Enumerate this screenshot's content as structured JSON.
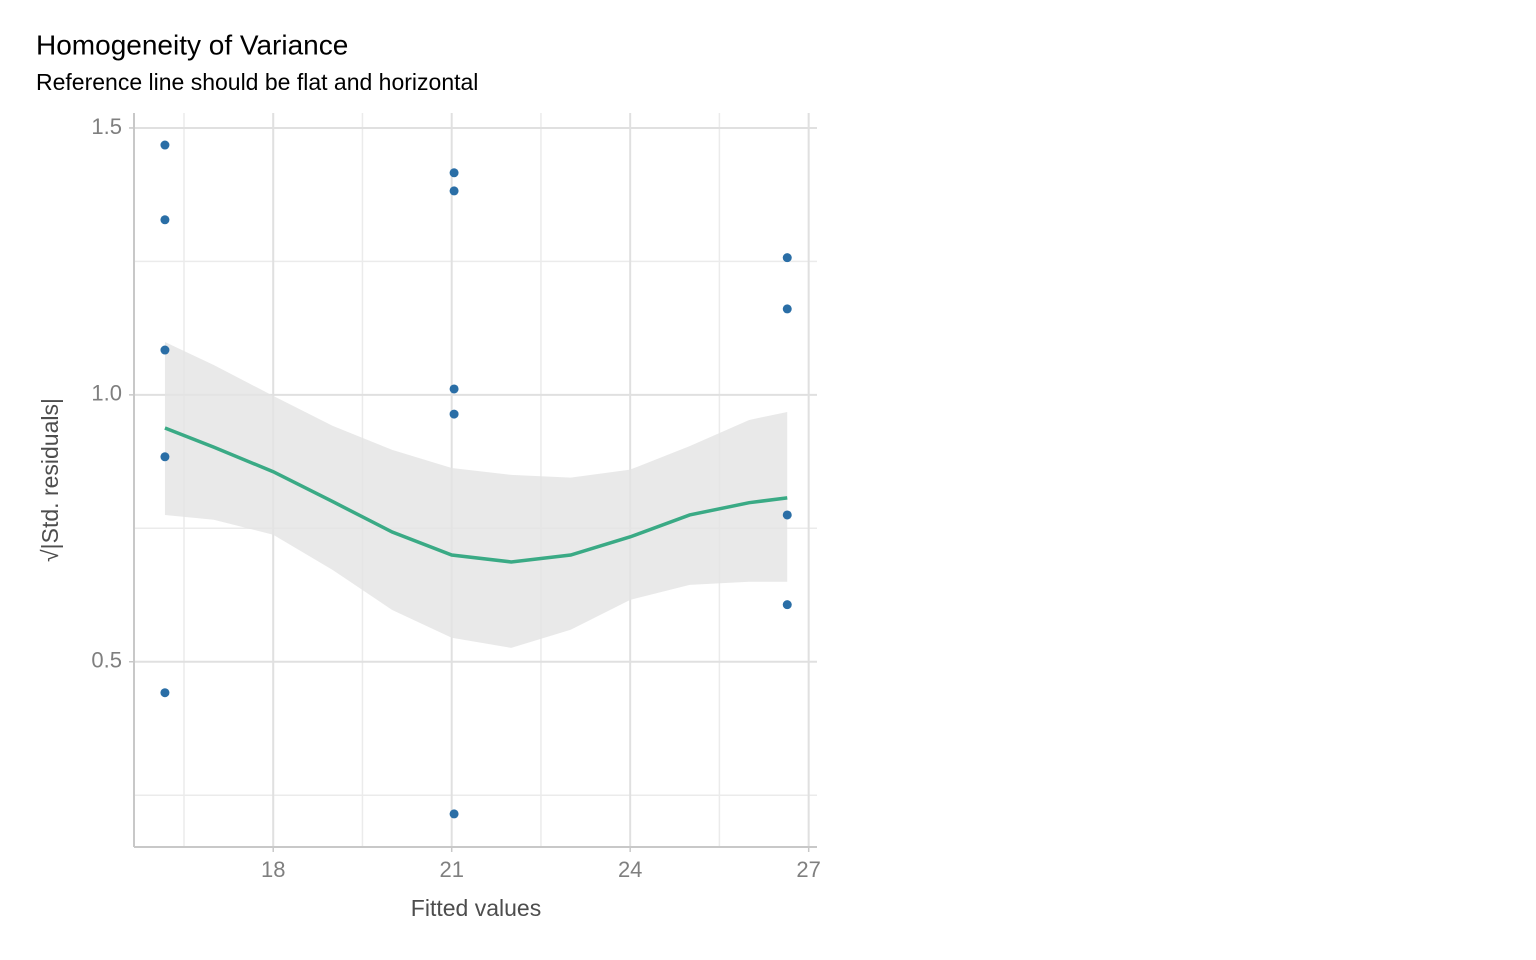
{
  "chart_data": {
    "type": "scatter",
    "title": "Homogeneity of Variance",
    "subtitle": "Reference line should be flat and horizontal",
    "x_label": "Fitted values",
    "y_label": "√|Std. residuals|",
    "xlim": [
      15.66,
      27.14
    ],
    "ylim": [
      0.153,
      1.528
    ],
    "xticks": [
      18,
      21,
      24,
      27
    ],
    "yticks": [
      0.5,
      {
        "value": 1,
        "label": "1.0"
      },
      1.5
    ],
    "xminor": [
      16.5,
      19.5,
      22.5,
      25.5
    ],
    "yminor": [
      0.25,
      0.75,
      1.25
    ],
    "grid": true,
    "points": {
      "color": "#2a6ea6",
      "x": [
        16.18,
        16.18,
        16.18,
        16.18,
        16.18,
        21.04,
        21.04,
        21.04,
        21.04,
        21.04,
        26.64,
        26.64,
        26.64,
        26.64
      ],
      "y": [
        1.468,
        1.328,
        1.084,
        0.884,
        0.442,
        1.416,
        1.382,
        1.011,
        0.964,
        0.215,
        1.257,
        1.161,
        0.775,
        0.607
      ]
    },
    "smooth": {
      "color": "#3aaa85",
      "band_color": "#e3e3e3",
      "x": [
        16.18,
        17,
        18,
        19,
        20,
        21,
        22,
        23,
        24,
        25,
        26,
        26.64
      ],
      "y": [
        0.938,
        0.902,
        0.856,
        0.8,
        0.743,
        0.7,
        0.687,
        0.7,
        0.734,
        0.775,
        0.798,
        0.807
      ],
      "upper": [
        1.099,
        1.056,
        0.998,
        0.942,
        0.897,
        0.863,
        0.85,
        0.845,
        0.86,
        0.904,
        0.953,
        0.968
      ],
      "lower": [
        0.775,
        0.766,
        0.738,
        0.672,
        0.597,
        0.545,
        0.526,
        0.56,
        0.616,
        0.644,
        0.65,
        0.65
      ]
    }
  }
}
